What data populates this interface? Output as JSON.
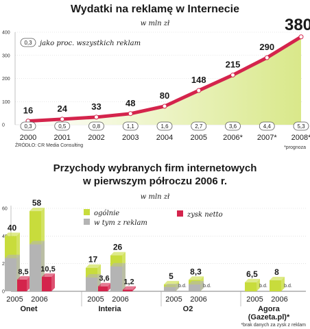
{
  "chart_data": [
    {
      "type": "area",
      "title": "Wydatki na reklamę w Internecie",
      "subtitle": "w mln zł",
      "legend_note": "jako proc. wszystkich reklam",
      "legend_note_sample": "0,3",
      "source": "ŹRÓDŁO: CR Media Consulting",
      "footnote": "*prognoza",
      "ylim": [
        0,
        400
      ],
      "yticks": [
        "0",
        "100",
        "200",
        "300",
        "400"
      ],
      "categories": [
        "2000",
        "2001",
        "2002",
        "2003",
        "2004",
        "2005",
        "2006*",
        "2007*",
        "2008*"
      ],
      "values": [
        16,
        24,
        33,
        48,
        80,
        148,
        215,
        290,
        380
      ],
      "value_labels": [
        "16",
        "24",
        "33",
        "48",
        "80",
        "148",
        "215",
        "290",
        "380"
      ],
      "percent_labels": [
        "0,3",
        "0,5",
        "0,8",
        "1,1",
        "1,6",
        "2,7",
        "3,6",
        "4,4",
        "5,3"
      ],
      "line_color": "#d4244c",
      "fill_color": "#d9e88a",
      "highlight_color": "#d4244c"
    },
    {
      "type": "bar",
      "title_lines": [
        "Przychody wybranych firm internetowych",
        "w pierwszym półroczu 2006 r."
      ],
      "subtitle": "w mln zł",
      "legend": {
        "total": "ogólnie",
        "ads": "w tym z reklam",
        "profit": "zysk netto"
      },
      "footnote": "*brak danych za zysk z reklam",
      "ylim": [
        0,
        60
      ],
      "yticks": [
        "0",
        "20",
        "40",
        "60"
      ],
      "na_label": "b.d.",
      "companies": [
        {
          "name": "Onet",
          "periods": [
            {
              "year": "2005",
              "total": 40,
              "total_label": "40",
              "ads": 24,
              "profit": 8.5,
              "profit_label": "8,5"
            },
            {
              "year": "2006",
              "total": 58,
              "total_label": "58",
              "ads": 34,
              "profit": 10.5,
              "profit_label": "10,5"
            }
          ]
        },
        {
          "name": "Interia",
          "periods": [
            {
              "year": "2005",
              "total": 17,
              "total_label": "17",
              "ads": 10,
              "profit": 3.6,
              "profit_label": "3,6"
            },
            {
              "year": "2006",
              "total": 26,
              "total_label": "26",
              "ads": 18,
              "profit": 1.2,
              "profit_label": "1,2"
            }
          ]
        },
        {
          "name": "O2",
          "periods": [
            {
              "year": "2005",
              "total": 5,
              "total_label": "5",
              "ads": 3,
              "profit": null,
              "profit_label": "b.d."
            },
            {
              "year": "2006",
              "total": 8.3,
              "total_label": "8,3",
              "ads": 5,
              "profit": null,
              "profit_label": "b.d."
            }
          ]
        },
        {
          "name": "Agora\n(Gazeta.pl)*",
          "name_lines": [
            "Agora",
            "(Gazeta.pl)*"
          ],
          "periods": [
            {
              "year": "2005",
              "total": 6.5,
              "total_label": "6,5",
              "ads": null,
              "profit": null,
              "profit_label": "b.d."
            },
            {
              "year": "2006",
              "total": 8,
              "total_label": "8",
              "ads": null,
              "profit": null,
              "profit_label": "b.d."
            }
          ]
        }
      ],
      "colors": {
        "total": "#c8dc3c",
        "ads": "#b4b4b4",
        "profit": "#d4244c"
      }
    }
  ]
}
